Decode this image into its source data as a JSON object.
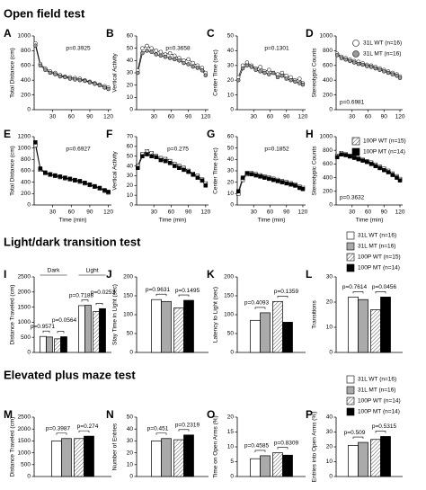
{
  "headings": [
    "Open field test",
    "Light/dark transition test",
    "Elevated plus maze test"
  ],
  "chart_data": [
    {
      "type": "line",
      "panel": "A",
      "ylabel": "Total Distance (cm)",
      "annotations": [
        "p=0.3925"
      ],
      "x": [
        2,
        10,
        18,
        26,
        34,
        42,
        50,
        58,
        66,
        74,
        82,
        90,
        98,
        106,
        114,
        120
      ],
      "xlim": [
        0,
        125
      ],
      "xticks": [
        30,
        60,
        90,
        120
      ],
      "ylim": [
        0,
        1000
      ],
      "yticks": [
        0,
        200,
        400,
        600,
        800,
        1000
      ],
      "series": [
        {
          "color": "#ffffff",
          "marker": "circle",
          "values": [
            900,
            620,
            560,
            520,
            500,
            470,
            450,
            440,
            430,
            420,
            400,
            380,
            360,
            340,
            320,
            300
          ]
        },
        {
          "color": "#999999",
          "marker": "circle",
          "values": [
            870,
            600,
            540,
            500,
            480,
            450,
            440,
            420,
            410,
            400,
            390,
            370,
            350,
            330,
            300,
            280
          ]
        }
      ]
    },
    {
      "type": "line",
      "panel": "B",
      "ylabel": "Vertical Activity",
      "annotations": [
        "p=0.3658"
      ],
      "x": [
        2,
        10,
        18,
        26,
        34,
        42,
        50,
        58,
        66,
        74,
        82,
        90,
        98,
        106,
        114,
        120
      ],
      "xlim": [
        0,
        125
      ],
      "xticks": [
        30,
        60,
        90,
        120
      ],
      "ylim": [
        0,
        60
      ],
      "yticks": [
        0,
        10,
        20,
        30,
        40,
        50,
        60
      ],
      "series": [
        {
          "color": "#ffffff",
          "marker": "circle",
          "values": [
            32,
            50,
            52,
            50,
            48,
            47,
            45,
            46,
            44,
            42,
            40,
            41,
            38,
            36,
            34,
            30
          ]
        },
        {
          "color": "#999999",
          "marker": "circle",
          "values": [
            30,
            46,
            48,
            47,
            45,
            44,
            43,
            42,
            41,
            40,
            38,
            37,
            35,
            34,
            32,
            28
          ]
        }
      ]
    },
    {
      "type": "line",
      "panel": "C",
      "ylabel": "Center Time (sec)",
      "annotations": [
        "p=0.1301"
      ],
      "x": [
        2,
        10,
        18,
        26,
        34,
        42,
        50,
        58,
        66,
        74,
        82,
        90,
        98,
        106,
        114,
        120
      ],
      "xlim": [
        0,
        125
      ],
      "xticks": [
        30,
        60,
        90,
        120
      ],
      "ylim": [
        0,
        50
      ],
      "yticks": [
        0,
        10,
        20,
        30,
        40,
        50
      ],
      "series": [
        {
          "color": "#ffffff",
          "marker": "circle",
          "values": [
            22,
            30,
            32,
            30,
            28,
            29,
            26,
            27,
            25,
            24,
            25,
            23,
            22,
            20,
            21,
            18
          ]
        },
        {
          "color": "#999999",
          "marker": "circle",
          "values": [
            20,
            28,
            30,
            29,
            27,
            26,
            25,
            24,
            25,
            22,
            23,
            21,
            20,
            19,
            18,
            17
          ]
        }
      ]
    },
    {
      "type": "line",
      "panel": "D",
      "ylabel": "Stereotypic Counts",
      "annotations": [
        "p=0.6981"
      ],
      "x": [
        2,
        10,
        18,
        26,
        34,
        42,
        50,
        58,
        66,
        74,
        82,
        90,
        98,
        106,
        114,
        120
      ],
      "xlim": [
        0,
        125
      ],
      "xticks": [
        30,
        60,
        90,
        120
      ],
      "ylim": [
        0,
        1000
      ],
      "yticks": [
        0,
        200,
        400,
        600,
        800,
        1000
      ],
      "series": [
        {
          "name": "31L WT (n=16)",
          "color": "#ffffff",
          "marker": "circle",
          "values": [
            760,
            720,
            700,
            680,
            660,
            650,
            630,
            610,
            600,
            580,
            560,
            540,
            520,
            500,
            480,
            450
          ]
        },
        {
          "name": "31L MT (n=16)",
          "color": "#999999",
          "marker": "circle",
          "values": [
            740,
            700,
            680,
            660,
            640,
            620,
            610,
            590,
            580,
            560,
            540,
            520,
            500,
            480,
            460,
            430
          ]
        }
      ]
    },
    {
      "type": "line",
      "panel": "E",
      "ylabel": "Total Distance (cm)",
      "xlabel": "Time (min)",
      "annotations": [
        "p=0.6927"
      ],
      "x": [
        2,
        10,
        18,
        26,
        34,
        42,
        50,
        58,
        66,
        74,
        82,
        90,
        98,
        106,
        114,
        120
      ],
      "xlim": [
        0,
        125
      ],
      "xticks": [
        30,
        60,
        90,
        120
      ],
      "ylim": [
        0,
        1200
      ],
      "yticks": [
        0,
        200,
        400,
        600,
        800,
        1000,
        1200
      ],
      "series": [
        {
          "color": "#ffffff",
          "hatch": true,
          "marker": "square",
          "values": [
            1050,
            620,
            560,
            530,
            510,
            490,
            470,
            450,
            430,
            410,
            380,
            350,
            320,
            290,
            250,
            220
          ]
        },
        {
          "color": "#000000",
          "marker": "square",
          "values": [
            1100,
            640,
            570,
            540,
            520,
            500,
            480,
            460,
            440,
            420,
            390,
            360,
            330,
            300,
            260,
            230
          ]
        }
      ]
    },
    {
      "type": "line",
      "panel": "F",
      "ylabel": "Vertical Activity",
      "xlabel": "Time (min)",
      "annotations": [
        "p=0.275"
      ],
      "x": [
        2,
        10,
        18,
        26,
        34,
        42,
        50,
        58,
        66,
        74,
        82,
        90,
        98,
        106,
        114,
        120
      ],
      "xlim": [
        0,
        125
      ],
      "xticks": [
        30,
        60,
        90,
        120
      ],
      "ylim": [
        0,
        70
      ],
      "yticks": [
        0,
        10,
        20,
        30,
        40,
        50,
        60,
        70
      ],
      "series": [
        {
          "color": "#ffffff",
          "hatch": true,
          "marker": "square",
          "values": [
            40,
            52,
            55,
            53,
            50,
            48,
            47,
            45,
            42,
            40,
            38,
            35,
            32,
            30,
            26,
            22
          ]
        },
        {
          "color": "#000000",
          "marker": "square",
          "values": [
            38,
            50,
            52,
            50,
            49,
            46,
            45,
            43,
            40,
            38,
            36,
            34,
            31,
            28,
            25,
            20
          ]
        }
      ]
    },
    {
      "type": "line",
      "panel": "G",
      "ylabel": "Center Time (sec)",
      "xlabel": "Time (min)",
      "annotations": [
        "p=0.1852"
      ],
      "x": [
        2,
        10,
        18,
        26,
        34,
        42,
        50,
        58,
        66,
        74,
        82,
        90,
        98,
        106,
        114,
        120
      ],
      "xlim": [
        0,
        125
      ],
      "xticks": [
        30,
        60,
        90,
        120
      ],
      "ylim": [
        0,
        60
      ],
      "yticks": [
        0,
        10,
        20,
        30,
        40,
        50,
        60
      ],
      "series": [
        {
          "color": "#ffffff",
          "hatch": true,
          "marker": "square",
          "values": [
            10,
            22,
            27,
            28,
            27,
            26,
            25,
            24,
            23,
            22,
            21,
            20,
            19,
            18,
            16,
            15
          ]
        },
        {
          "color": "#000000",
          "marker": "square",
          "values": [
            12,
            24,
            28,
            27,
            26,
            25,
            24,
            23,
            22,
            21,
            20,
            19,
            18,
            17,
            15,
            14
          ]
        }
      ]
    },
    {
      "type": "line",
      "panel": "H",
      "ylabel": "Stereotypic Counts",
      "xlabel": "Time (min)",
      "annotations": [
        "p=0.3632"
      ],
      "x": [
        2,
        10,
        18,
        26,
        34,
        42,
        50,
        58,
        66,
        74,
        82,
        90,
        98,
        106,
        114,
        120
      ],
      "xlim": [
        0,
        125
      ],
      "xticks": [
        30,
        60,
        90,
        120
      ],
      "ylim": [
        0,
        1000
      ],
      "yticks": [
        0,
        200,
        400,
        600,
        800,
        1000
      ],
      "series": [
        {
          "name": "100P WT (n=15)",
          "color": "#ffffff",
          "hatch": true,
          "marker": "square",
          "values": [
            720,
            760,
            740,
            720,
            700,
            680,
            660,
            640,
            620,
            590,
            560,
            530,
            500,
            460,
            420,
            380
          ]
        },
        {
          "name": "100P MT (n=14)",
          "color": "#000000",
          "marker": "square",
          "values": [
            700,
            740,
            730,
            710,
            690,
            670,
            650,
            630,
            600,
            570,
            540,
            510,
            480,
            440,
            400,
            360
          ]
        }
      ]
    },
    {
      "type": "bar",
      "panel": "I",
      "ylabel": "Distance Traveled (cm)",
      "categories": [
        "Dark",
        "Light"
      ],
      "annotations": [
        "p=0.9571",
        "p=0.0564",
        "p=0.7188",
        "p=0.0253"
      ],
      "ylim": [
        0,
        2500
      ],
      "yticks": [
        0,
        500,
        1000,
        1500,
        2000,
        2500
      ],
      "series": [
        {
          "color": "#ffffff",
          "values": [
            530,
            1550
          ]
        },
        {
          "color": "#aaaaaa",
          "values": [
            510,
            1560
          ]
        },
        {
          "color": "#ffffff",
          "hatch": true,
          "values": [
            450,
            1350
          ]
        },
        {
          "color": "#000000",
          "values": [
            520,
            1450
          ]
        }
      ]
    },
    {
      "type": "bar",
      "panel": "J",
      "ylabel": "Stay Time in Light (sec)",
      "categories": [
        null
      ],
      "annotations": [
        "p=0.9631",
        "p=0.1495"
      ],
      "ylim": [
        0,
        200
      ],
      "yticks": [
        0,
        50,
        100,
        150,
        200
      ],
      "series": [
        {
          "color": "#ffffff",
          "values": [
            140
          ]
        },
        {
          "color": "#aaaaaa",
          "values": [
            135
          ]
        },
        {
          "color": "#ffffff",
          "hatch": true,
          "values": [
            118
          ]
        },
        {
          "color": "#000000",
          "values": [
            138
          ]
        }
      ]
    },
    {
      "type": "bar",
      "panel": "K",
      "ylabel": "Latency to Light (sec)",
      "categories": [
        null
      ],
      "annotations": [
        "p=0.4093",
        "p=0.1359"
      ],
      "ylim": [
        0,
        200
      ],
      "yticks": [
        0,
        50,
        100,
        150,
        200
      ],
      "series": [
        {
          "color": "#ffffff",
          "values": [
            85
          ]
        },
        {
          "color": "#aaaaaa",
          "values": [
            105
          ]
        },
        {
          "color": "#ffffff",
          "hatch": true,
          "values": [
            135
          ]
        },
        {
          "color": "#000000",
          "values": [
            80
          ]
        }
      ]
    },
    {
      "type": "bar",
      "panel": "L",
      "ylabel": "Transitions",
      "categories": [
        null
      ],
      "annotations": [
        "p=0.7614",
        "p=0.0456"
      ],
      "ylim": [
        0,
        30
      ],
      "yticks": [
        0,
        10,
        20,
        30
      ],
      "series": [
        {
          "name": "31L WT (n=16)",
          "color": "#ffffff",
          "values": [
            22
          ]
        },
        {
          "name": "31L MT (n=16)",
          "color": "#aaaaaa",
          "values": [
            21
          ]
        },
        {
          "name": "100P WT (n=15)",
          "color": "#ffffff",
          "hatch": true,
          "values": [
            17
          ]
        },
        {
          "name": "100P MT (n=14)",
          "color": "#000000",
          "values": [
            22
          ]
        }
      ]
    },
    {
      "type": "bar",
      "panel": "M",
      "ylabel": "Distance Traveled (cm)",
      "categories": [
        null
      ],
      "annotations": [
        "p=0.3987",
        "p=0.274"
      ],
      "ylim": [
        0,
        2500
      ],
      "yticks": [
        0,
        500,
        1000,
        1500,
        2000,
        2500
      ],
      "series": [
        {
          "color": "#ffffff",
          "values": [
            1500
          ]
        },
        {
          "color": "#aaaaaa",
          "values": [
            1600
          ]
        },
        {
          "color": "#ffffff",
          "hatch": true,
          "values": [
            1600
          ]
        },
        {
          "color": "#000000",
          "values": [
            1700
          ]
        }
      ]
    },
    {
      "type": "bar",
      "panel": "N",
      "ylabel": "Number of Entries",
      "categories": [
        null
      ],
      "annotations": [
        "p=0.451",
        "p=0.2319"
      ],
      "ylim": [
        0,
        50
      ],
      "yticks": [
        0,
        10,
        20,
        30,
        40,
        50
      ],
      "series": [
        {
          "color": "#ffffff",
          "values": [
            30
          ]
        },
        {
          "color": "#aaaaaa",
          "values": [
            32
          ]
        },
        {
          "color": "#ffffff",
          "hatch": true,
          "values": [
            31
          ]
        },
        {
          "color": "#000000",
          "values": [
            35
          ]
        }
      ]
    },
    {
      "type": "bar",
      "panel": "O",
      "ylabel": "Time on Open Arms (%)",
      "categories": [
        null
      ],
      "annotations": [
        "p=0.4585",
        "p=0.8309"
      ],
      "ylim": [
        0,
        20
      ],
      "yticks": [
        0,
        5,
        10,
        15,
        20
      ],
      "series": [
        {
          "color": "#ffffff",
          "values": [
            6
          ]
        },
        {
          "color": "#aaaaaa",
          "values": [
            7
          ]
        },
        {
          "color": "#ffffff",
          "hatch": true,
          "values": [
            8
          ]
        },
        {
          "color": "#000000",
          "values": [
            7.2
          ]
        }
      ]
    },
    {
      "type": "bar",
      "panel": "P",
      "ylabel": "Entries into Open Arms (%)",
      "categories": [
        null
      ],
      "annotations": [
        "p=0.509",
        "p=0.5315"
      ],
      "ylim": [
        0,
        40
      ],
      "yticks": [
        0,
        10,
        20,
        30,
        40
      ],
      "series": [
        {
          "name": "31L WT (n=16)",
          "color": "#ffffff",
          "values": [
            21
          ]
        },
        {
          "name": "31L MT (n=16)",
          "color": "#aaaaaa",
          "values": [
            23
          ]
        },
        {
          "name": "100P WT (n=14)",
          "color": "#ffffff",
          "hatch": true,
          "values": [
            25
          ]
        },
        {
          "name": "100P MT (n=14)",
          "color": "#000000",
          "values": [
            27
          ]
        }
      ]
    }
  ]
}
